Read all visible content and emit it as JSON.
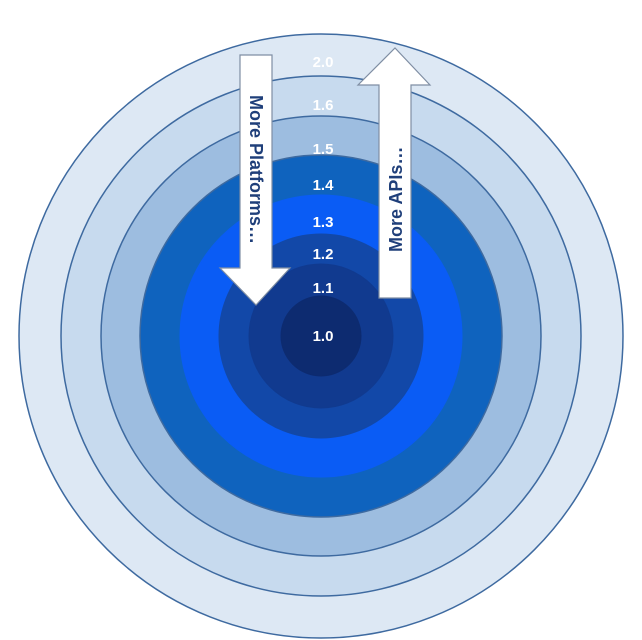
{
  "rings": [
    {
      "label": "2.0",
      "color": "#dde8f4",
      "stroke": "#3e6aa0"
    },
    {
      "label": "1.6",
      "color": "#c7daee",
      "stroke": "#3e6aa0"
    },
    {
      "label": "1.5",
      "color": "#9dbde0",
      "stroke": "#3e6aa0"
    },
    {
      "label": "1.4",
      "color": "#0f63be",
      "stroke": "#3e6aa0"
    },
    {
      "label": "1.3",
      "color": "#0a5cf5",
      "stroke": "#0a5cf5"
    },
    {
      "label": "1.2",
      "color": "#1248a8",
      "stroke": "#1248a8"
    },
    {
      "label": "1.1",
      "color": "#113a8f",
      "stroke": "#113a8f"
    },
    {
      "label": "1.0",
      "color": "#0d2b70",
      "stroke": "#0d2b70"
    }
  ],
  "arrows": {
    "down": {
      "label": "More Platforms…",
      "fill": "#ffffff",
      "stroke": "#7f8ea3"
    },
    "up": {
      "label": "More APIs…",
      "fill": "#ffffff",
      "stroke": "#7f8ea3"
    }
  }
}
